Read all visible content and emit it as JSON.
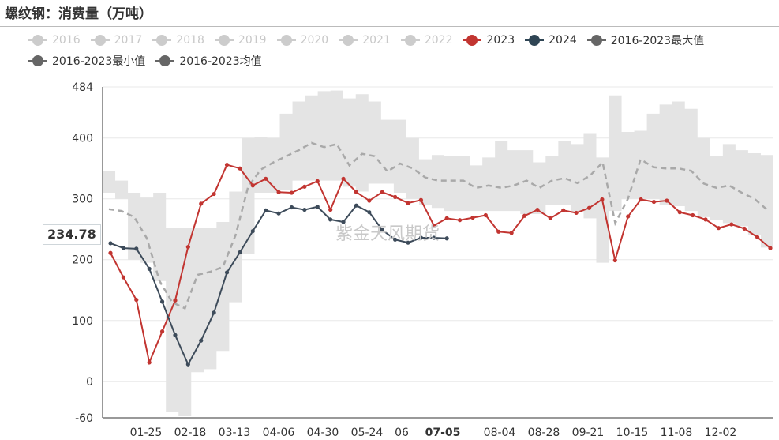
{
  "title": "螺纹钢：消费量（万吨）",
  "watermark": "紫金天风期货",
  "crosshair_value": "234.78",
  "colors": {
    "band": "#e4e4e4",
    "avg": "#a9a9a9",
    "y2023": "#c23531",
    "y2024": "#3d4b5a",
    "inactive": "#cccccc",
    "grid": "#e8e8e8"
  },
  "legend": [
    {
      "label": "2016",
      "active": false,
      "color": "#cccccc"
    },
    {
      "label": "2017",
      "active": false,
      "color": "#cccccc"
    },
    {
      "label": "2018",
      "active": false,
      "color": "#cccccc"
    },
    {
      "label": "2019",
      "active": false,
      "color": "#cccccc"
    },
    {
      "label": "2020",
      "active": false,
      "color": "#cccccc"
    },
    {
      "label": "2021",
      "active": false,
      "color": "#cccccc"
    },
    {
      "label": "2022",
      "active": false,
      "color": "#cccccc"
    },
    {
      "label": "2023",
      "active": true,
      "color": "#c23531"
    },
    {
      "label": "2024",
      "active": true,
      "color": "#2f4554"
    },
    {
      "label": "2016-2023最大值",
      "active": true,
      "color": "#666666"
    },
    {
      "label": "2016-2023最小值",
      "active": true,
      "color": "#666666"
    },
    {
      "label": "2016-2023均值",
      "active": true,
      "color": "#666666"
    }
  ],
  "chart_data": {
    "type": "line",
    "title": "螺纹钢：消费量（万吨）",
    "ylim": [
      -60,
      484
    ],
    "yticks": [
      -60,
      0,
      100,
      200,
      300,
      400,
      484
    ],
    "x_tick_labels": [
      "01-25",
      "02-18",
      "03-13",
      "04-06",
      "04-30",
      "05-24",
      "06",
      "07-05",
      "08-04",
      "08-28",
      "09-21",
      "10-15",
      "11-08",
      "12-02"
    ],
    "x_tick_positions": [
      4,
      8,
      12,
      16,
      20,
      24,
      27,
      30,
      34,
      38,
      42,
      46,
      50,
      54
    ],
    "highlight_tick": "07-05",
    "x_count": 57,
    "series": [
      {
        "name": "2023",
        "values": [
          211,
          171,
          134,
          31,
          82,
          133,
          221,
          292,
          308,
          356,
          350,
          322,
          333,
          311,
          310,
          320,
          329,
          282,
          333,
          311,
          297,
          311,
          303,
          293,
          298,
          256,
          268,
          265,
          269,
          273,
          246,
          244,
          272,
          282,
          268,
          281,
          277,
          285,
          299,
          199,
          271,
          299,
          295,
          297,
          278,
          273,
          266,
          252,
          258,
          251,
          237,
          219
        ]
      },
      {
        "name": "2024",
        "values": [
          227,
          219,
          218,
          185,
          131,
          76,
          28,
          67,
          113,
          179,
          212,
          247,
          281,
          276,
          286,
          282,
          287,
          266,
          262,
          289,
          278,
          249,
          233,
          228,
          236,
          236,
          235
        ]
      },
      {
        "name": "2016-2023最大值",
        "values": [
          345,
          330,
          310,
          302,
          310,
          252,
          252,
          252,
          252,
          262,
          312,
          400,
          402,
          400,
          440,
          460,
          470,
          477,
          478,
          465,
          472,
          460,
          430,
          430,
          400,
          365,
          372,
          370,
          370,
          355,
          368,
          395,
          380,
          380,
          360,
          370,
          395,
          390,
          408,
          368,
          470,
          410,
          412,
          440,
          455,
          460,
          448,
          400,
          370,
          390,
          380,
          375,
          372
        ]
      },
      {
        "name": "2016-2023最小值",
        "values": [
          310,
          300,
          200,
          195,
          165,
          -50,
          -57,
          15,
          20,
          50,
          130,
          210,
          310,
          310,
          315,
          330,
          330,
          330,
          330,
          320,
          312,
          325,
          325,
          310,
          300,
          290,
          285,
          280,
          280,
          280,
          280,
          280,
          280,
          275,
          275,
          290,
          290,
          278,
          268,
          195,
          280,
          300,
          300,
          300,
          290,
          288,
          280,
          270,
          265,
          260,
          255,
          240,
          220
        ]
      },
      {
        "name": "2016-2023均值",
        "values": [
          283,
          280,
          270,
          235,
          165,
          130,
          120,
          175,
          180,
          188,
          240,
          320,
          348,
          360,
          370,
          380,
          392,
          385,
          390,
          355,
          374,
          370,
          345,
          358,
          350,
          335,
          330,
          330,
          330,
          318,
          322,
          318,
          322,
          330,
          318,
          330,
          334,
          326,
          338,
          360,
          260,
          300,
          365,
          352,
          350,
          350,
          346,
          325,
          318,
          322,
          310,
          300,
          282
        ]
      }
    ]
  }
}
